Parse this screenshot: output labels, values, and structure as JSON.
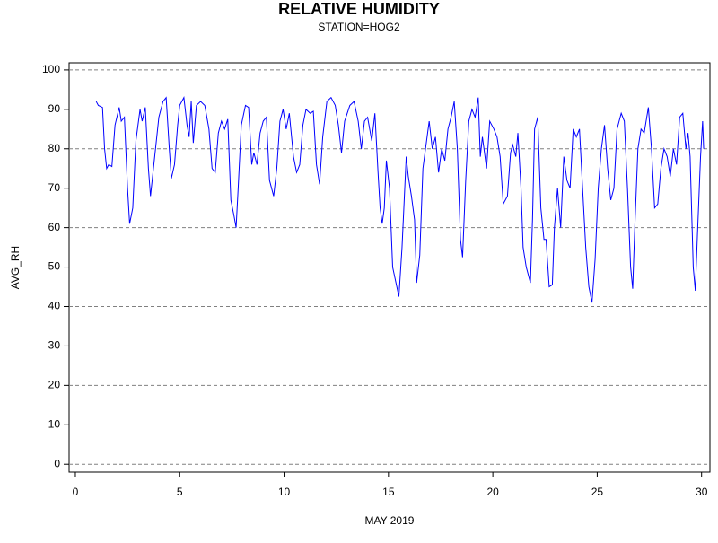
{
  "chart_data": {
    "type": "line",
    "title": "RELATIVE HUMIDITY",
    "subtitle": "STATION=HOG2",
    "x_label": "MAY 2019",
    "y_label": "AVG_RH",
    "xlim": [
      -0.3,
      30.4
    ],
    "xticks": [
      0,
      5,
      10,
      15,
      20,
      25,
      30
    ],
    "ylim": [
      -2,
      101.8
    ],
    "yticks": [
      0,
      10,
      20,
      30,
      40,
      50,
      60,
      70,
      80,
      90,
      100
    ],
    "ygrid": [
      0,
      20,
      40,
      60,
      80,
      100
    ],
    "series": [
      {
        "color": "#0000ff",
        "x": [
          1.0,
          1.1,
          1.3,
          1.4,
          1.5,
          1.6,
          1.75,
          1.9,
          2.1,
          2.2,
          2.35,
          2.5,
          2.6,
          2.75,
          2.9,
          3.1,
          3.2,
          3.35,
          3.5,
          3.6,
          3.8,
          4.0,
          4.2,
          4.35,
          4.5,
          4.6,
          4.75,
          4.9,
          5.0,
          5.2,
          5.35,
          5.45,
          5.55,
          5.65,
          5.8,
          6.0,
          6.2,
          6.4,
          6.55,
          6.7,
          6.85,
          7.0,
          7.15,
          7.3,
          7.45,
          7.6,
          7.7,
          7.8,
          7.95,
          8.15,
          8.3,
          8.45,
          8.55,
          8.7,
          8.85,
          9.0,
          9.15,
          9.3,
          9.5,
          9.65,
          9.8,
          9.95,
          10.1,
          10.25,
          10.45,
          10.6,
          10.75,
          10.9,
          11.05,
          11.25,
          11.4,
          11.55,
          11.7,
          11.85,
          12.05,
          12.25,
          12.45,
          12.6,
          12.75,
          12.9,
          13.15,
          13.35,
          13.55,
          13.7,
          13.85,
          14.0,
          14.2,
          14.35,
          14.5,
          14.6,
          14.7,
          14.8,
          14.9,
          15.05,
          15.2,
          15.4,
          15.5,
          15.65,
          15.85,
          15.95,
          16.1,
          16.25,
          16.35,
          16.5,
          16.65,
          16.85,
          16.95,
          17.1,
          17.25,
          17.4,
          17.55,
          17.7,
          17.85,
          18.0,
          18.15,
          18.3,
          18.45,
          18.55,
          18.7,
          18.85,
          19.0,
          19.15,
          19.3,
          19.4,
          19.5,
          19.7,
          19.85,
          20.05,
          20.2,
          20.35,
          20.5,
          20.7,
          20.85,
          20.95,
          21.1,
          21.2,
          21.35,
          21.45,
          21.6,
          21.8,
          21.9,
          22.0,
          22.15,
          22.3,
          22.45,
          22.55,
          22.7,
          22.85,
          22.95,
          23.1,
          23.25,
          23.4,
          23.55,
          23.7,
          23.85,
          24.0,
          24.15,
          24.3,
          24.45,
          24.6,
          24.75,
          24.9,
          25.05,
          25.2,
          25.35,
          25.5,
          25.65,
          25.8,
          25.95,
          26.15,
          26.3,
          26.45,
          26.6,
          26.7,
          26.8,
          26.95,
          27.1,
          27.25,
          27.45,
          27.6,
          27.75,
          27.9,
          28.05,
          28.2,
          28.35,
          28.5,
          28.65,
          28.8,
          28.95,
          29.1,
          29.25,
          29.35,
          29.45,
          29.6,
          29.7,
          29.8,
          29.95,
          30.05,
          30.1
        ],
        "values": [
          92,
          91,
          90.5,
          80,
          75,
          76,
          75.5,
          86,
          90.5,
          87,
          88,
          70,
          61,
          65,
          82,
          90,
          87,
          90.5,
          75,
          68,
          78,
          88,
          92,
          93,
          80,
          72.5,
          76,
          86,
          91,
          93,
          86,
          83,
          92,
          81.5,
          91,
          92,
          91,
          85,
          75,
          74,
          84,
          87,
          85,
          87.5,
          67,
          63,
          60,
          70,
          86,
          91,
          90.5,
          76,
          79,
          76,
          84,
          87,
          88,
          72,
          68,
          75,
          87,
          90,
          85,
          89,
          78,
          74,
          76,
          86,
          90,
          89,
          89.5,
          76,
          71,
          83,
          92,
          93,
          91,
          86,
          79,
          87,
          91,
          92,
          87,
          80,
          87,
          88,
          82,
          89,
          74,
          65,
          61,
          65,
          77,
          70,
          50,
          45,
          42.5,
          55,
          78,
          73,
          68,
          62,
          46,
          53,
          75,
          83,
          87,
          80,
          83,
          74,
          80,
          77,
          85,
          88,
          92,
          80,
          57,
          52.5,
          72,
          87,
          90,
          88,
          93,
          78,
          83,
          75,
          87,
          85,
          83,
          78,
          66,
          68,
          79,
          81,
          78,
          84,
          70,
          55,
          50,
          46,
          62,
          85,
          88,
          65,
          57,
          57,
          45,
          45.5,
          60,
          70,
          60,
          78,
          72,
          70,
          85,
          83,
          85,
          70,
          55,
          45,
          41,
          52,
          70,
          80,
          86,
          75,
          67,
          70,
          85,
          89,
          87,
          70,
          50,
          44.5,
          60,
          80,
          85,
          84,
          90.5,
          80,
          65,
          66,
          75,
          80,
          78,
          73,
          80,
          76,
          88,
          89,
          80,
          84,
          78,
          50,
          44,
          58,
          78,
          87,
          80
        ]
      }
    ]
  }
}
